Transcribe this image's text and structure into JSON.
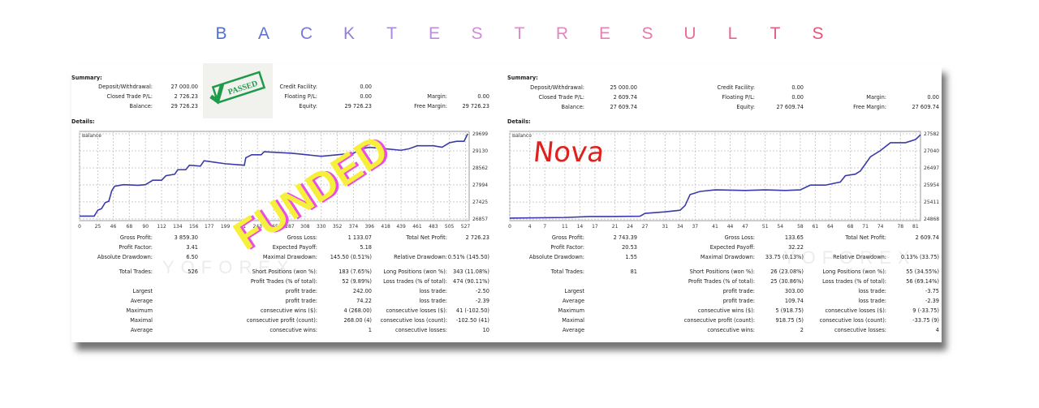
{
  "title": {
    "letters": [
      "B",
      "A",
      "C",
      "K",
      "T",
      "E",
      "S",
      "T",
      "R",
      "E",
      "S",
      "U",
      "L",
      "T",
      "S"
    ],
    "colors": [
      "#4f6fcf",
      "#5f74d2",
      "#7a79d6",
      "#9380d9",
      "#ab87dc",
      "#bf8cdc",
      "#ce8ed7",
      "#d98bcc",
      "#e286c0",
      "#e77fb3",
      "#ea78a6",
      "#ea6f99",
      "#ea658e",
      "#e95c85",
      "#e8527c"
    ]
  },
  "left": {
    "summary_label": "Summary:",
    "details_label": "Details:",
    "summary": [
      [
        "Deposit/Withdrawal:",
        "27 000.00",
        "Credit Facility:",
        "0.00",
        "",
        ""
      ],
      [
        "Closed Trade P/L:",
        "2 726.23",
        "Floating P/L:",
        "0.00",
        "Margin:",
        "0.00"
      ],
      [
        "Balance:",
        "29 726.23",
        "Equity:",
        "29 726.23",
        "Free Margin:",
        "29 726.23"
      ]
    ],
    "stamp_text": "PASSED",
    "overlay_text": "FUNDED",
    "watermark": "YOFOREX",
    "stats": [
      [
        "Gross Profit:",
        "3 859.30",
        "Gross Loss:",
        "1 133.07",
        "Total Net Profit:",
        "2 726.23"
      ],
      [
        "Profit Factor:",
        "3.41",
        "Expected Payoff:",
        "5.18",
        "",
        ""
      ],
      [
        "Absolute Drawdown:",
        "6.50",
        "Maximal Drawdown:",
        "145.50 (0.51%)",
        "Relative Drawdown:",
        "0.51% (145.50)"
      ],
      [
        "Total Trades:",
        "526",
        "Short Positions (won %):",
        "183 (7.65%)",
        "Long Positions (won %):",
        "343 (11.08%)"
      ],
      [
        "",
        "",
        "Profit Trades (% of total):",
        "52 (9.89%)",
        "Loss trades (% of total):",
        "474 (90.11%)"
      ],
      [
        "Largest",
        "",
        "profit trade:",
        "242.00",
        "loss trade:",
        "-2.50"
      ],
      [
        "Average",
        "",
        "profit trade:",
        "74.22",
        "loss trade:",
        "-2.39"
      ],
      [
        "Maximum",
        "",
        "consecutive wins ($):",
        "4 (268.00)",
        "consecutive losses ($):",
        "41 (-102.50)"
      ],
      [
        "Maximal",
        "",
        "consecutive profit (count):",
        "268.00 (4)",
        "consecutive loss (count):",
        "-102.50 (41)"
      ],
      [
        "Average",
        "",
        "consecutive wins:",
        "1",
        "consecutive losses:",
        "10"
      ]
    ]
  },
  "right": {
    "summary_label": "Summary:",
    "details_label": "Details:",
    "summary": [
      [
        "Deposit/Withdrawal:",
        "25 000.00",
        "Credit Facility:",
        "0.00",
        "",
        ""
      ],
      [
        "Closed Trade P/L:",
        "2 609.74",
        "Floating P/L:",
        "0.00",
        "Margin:",
        "0.00"
      ],
      [
        "Balance:",
        "27 609.74",
        "Equity:",
        "27 609.74",
        "Free Margin:",
        "27 609.74"
      ]
    ],
    "overlay_text": "Nova",
    "watermark": "YOFOREX",
    "stats": [
      [
        "Gross Profit:",
        "2 743.39",
        "Gross Loss:",
        "133.65",
        "Total Net Profit:",
        "2 609.74"
      ],
      [
        "Profit Factor:",
        "20.53",
        "Expected Payoff:",
        "32.22",
        "",
        ""
      ],
      [
        "Absolute Drawdown:",
        "1.55",
        "Maximal Drawdown:",
        "33.75 (0.13%)",
        "Relative Drawdown:",
        "0.13% (33.75)"
      ],
      [
        "Total Trades:",
        "81",
        "Short Positions (won %):",
        "26 (23.08%)",
        "Long Positions (won %):",
        "55 (34.55%)"
      ],
      [
        "",
        "",
        "Profit Trades (% of total):",
        "25 (30.86%)",
        "Loss trades (% of total):",
        "56 (69.14%)"
      ],
      [
        "Largest",
        "",
        "profit trade:",
        "303.00",
        "loss trade:",
        "-3.75"
      ],
      [
        "Average",
        "",
        "profit trade:",
        "109.74",
        "loss trade:",
        "-2.39"
      ],
      [
        "Maximum",
        "",
        "consecutive wins ($):",
        "5 (918.75)",
        "consecutive losses ($):",
        "9 (-33.75)"
      ],
      [
        "Maximal",
        "",
        "consecutive profit (count):",
        "918.75 (5)",
        "consecutive loss (count):",
        "-33.75 (9)"
      ],
      [
        "Average",
        "",
        "consecutive wins:",
        "2",
        "consecutive losses:",
        "4"
      ]
    ]
  },
  "chart_data": [
    {
      "type": "line",
      "title": "Balance",
      "color": "#3a3aa8",
      "grid": true,
      "x_ticks": [
        0,
        25,
        46,
        68,
        90,
        112,
        134,
        156,
        177,
        199,
        221,
        243,
        265,
        287,
        308,
        330,
        352,
        374,
        396,
        418,
        439,
        461,
        483,
        505,
        527
      ],
      "y_ticks": [
        26857,
        27425,
        27994,
        28562,
        29130,
        29699
      ],
      "xlim": [
        0,
        532
      ],
      "ylim": [
        26800,
        29780
      ],
      "series": [
        {
          "x": [
            0,
            20,
            25,
            30,
            35,
            40,
            44,
            48,
            60,
            80,
            90,
            100,
            112,
            118,
            130,
            134,
            145,
            150,
            165,
            170,
            199,
            225,
            227,
            235,
            248,
            252,
            290,
            330,
            352,
            374,
            385,
            396,
            418,
            439,
            450,
            461,
            483,
            495,
            505,
            515,
            525,
            530
          ],
          "y": [
            26950,
            26950,
            27150,
            27200,
            27400,
            27450,
            27800,
            27950,
            28000,
            27980,
            28000,
            28150,
            28150,
            28300,
            28350,
            28500,
            28500,
            28650,
            28620,
            28800,
            28700,
            28650,
            28900,
            29000,
            29000,
            29100,
            29050,
            28950,
            29000,
            29050,
            29200,
            29250,
            29200,
            29150,
            29200,
            29300,
            29300,
            29250,
            29400,
            29450,
            29450,
            29699
          ]
        }
      ]
    },
    {
      "type": "line",
      "title": "Balance",
      "color": "#3a3aa8",
      "grid": true,
      "x_ticks": [
        0,
        4,
        7,
        11,
        14,
        17,
        21,
        24,
        27,
        31,
        34,
        37,
        41,
        44,
        47,
        51,
        54,
        58,
        61,
        64,
        68,
        71,
        74,
        78,
        81
      ],
      "y_ticks": [
        24868,
        25411,
        25954,
        26497,
        27040,
        27582
      ],
      "xlim": [
        0,
        82
      ],
      "ylim": [
        24820,
        27660
      ],
      "series": [
        {
          "x": [
            0,
            11,
            16,
            20,
            26,
            27,
            31,
            34,
            35,
            36,
            38,
            41,
            47,
            51,
            55,
            58,
            60,
            63,
            66,
            67,
            69,
            70,
            72,
            74,
            76,
            79,
            81,
            82
          ],
          "y": [
            24900,
            24920,
            24950,
            24950,
            24960,
            25050,
            25100,
            25150,
            25300,
            25650,
            25750,
            25800,
            25780,
            25800,
            25780,
            25800,
            25950,
            25950,
            26050,
            26250,
            26300,
            26400,
            26850,
            27050,
            27300,
            27300,
            27400,
            27550
          ]
        }
      ]
    }
  ]
}
